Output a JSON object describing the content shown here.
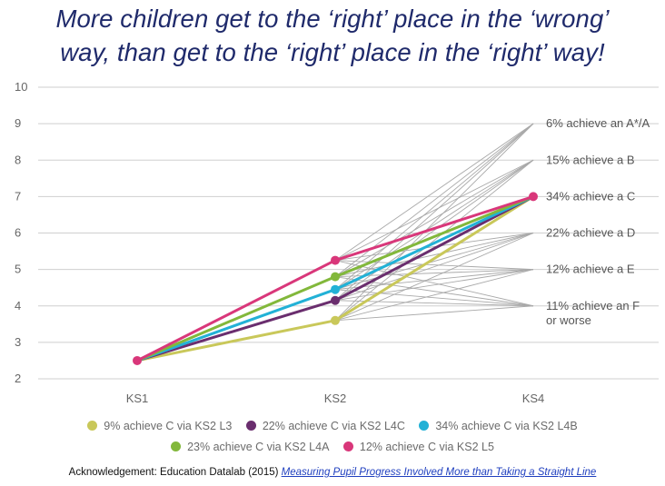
{
  "title_line1": "More children get to the ‘right’ place in the ‘wrong’",
  "title_line2": "way, than get to the ‘right’ place in the ‘right’ way!",
  "acknowledgement": {
    "prefix": "Acknowledgement: Education Datalab (2015)",
    "link_text": "Measuring Pupil Progress Involved More than Taking a Straight Line"
  },
  "chart_data": {
    "type": "line",
    "categories": [
      "KS1",
      "KS2",
      "KS4"
    ],
    "ylim": [
      2,
      10
    ],
    "yticks": [
      "2",
      "3",
      "4",
      "5",
      "6",
      "7",
      "8",
      "9",
      "10"
    ],
    "grid": true,
    "background_ks2_points": [
      3.6,
      4.15,
      4.45,
      4.8,
      5.25
    ],
    "background_ks4_targets": [
      4,
      5,
      6,
      7,
      8,
      9
    ],
    "series": [
      {
        "name": "9% achieve C via KS2 L3",
        "values": [
          2.5,
          3.6,
          7
        ],
        "color": "#c9c85a"
      },
      {
        "name": "22% achieve C via KS2 L4C",
        "values": [
          2.5,
          4.15,
          7
        ],
        "color": "#6a2e6e"
      },
      {
        "name": "34% achieve C via KS2 L4B",
        "values": [
          2.5,
          4.45,
          7
        ],
        "color": "#22b1d6"
      },
      {
        "name": "23% achieve C via KS2 L4A",
        "values": [
          2.5,
          4.8,
          7
        ],
        "color": "#82b83b"
      },
      {
        "name": "12% achieve C via KS2 L5",
        "values": [
          2.5,
          5.25,
          7
        ],
        "color": "#d9377a"
      }
    ],
    "annotations": [
      {
        "y": 9,
        "text": "6% achieve an A*/A"
      },
      {
        "y": 8,
        "text": "15% achieve a B"
      },
      {
        "y": 7,
        "text": "34% achieve a C"
      },
      {
        "y": 6,
        "text": "22% achieve a D"
      },
      {
        "y": 5,
        "text": "12% achieve a E"
      },
      {
        "y": 4,
        "text": "11% achieve an F",
        "text2": "or worse"
      }
    ]
  }
}
